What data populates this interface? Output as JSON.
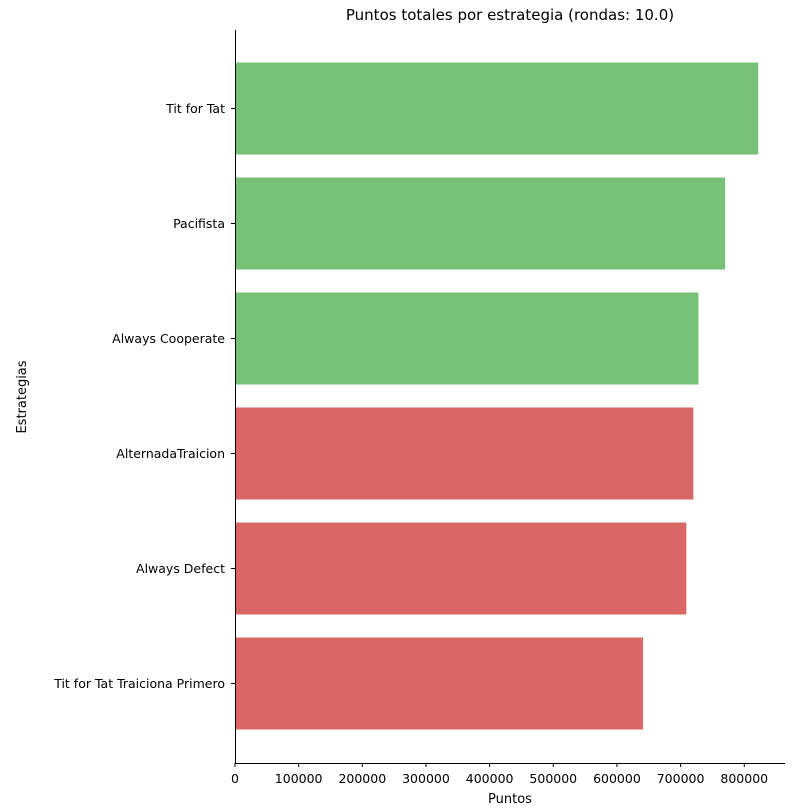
{
  "chart_data": {
    "type": "bar",
    "orientation": "horizontal",
    "title": "Puntos totales por estrategia (rondas: 10.0)",
    "xlabel": "Puntos",
    "ylabel": "Estrategias",
    "categories": [
      "Tit for Tat",
      "Pacifista",
      "Always Cooperate",
      "AlternadaTraicion",
      "Always Defect",
      "Tit for Tat Traiciona Primero"
    ],
    "values": [
      822000,
      770000,
      728000,
      720000,
      709000,
      641000
    ],
    "bar_colors": [
      "#77c177",
      "#77c177",
      "#77c177",
      "#d96766",
      "#d96766",
      "#d96766"
    ],
    "xlim": [
      0,
      864000
    ],
    "xticks": [
      0,
      100000,
      200000,
      300000,
      400000,
      500000,
      600000,
      700000,
      800000
    ],
    "xtick_labels": [
      "0",
      "100000",
      "200000",
      "300000",
      "400000",
      "500000",
      "600000",
      "700000",
      "800000"
    ],
    "grid": false,
    "legend": "none"
  }
}
